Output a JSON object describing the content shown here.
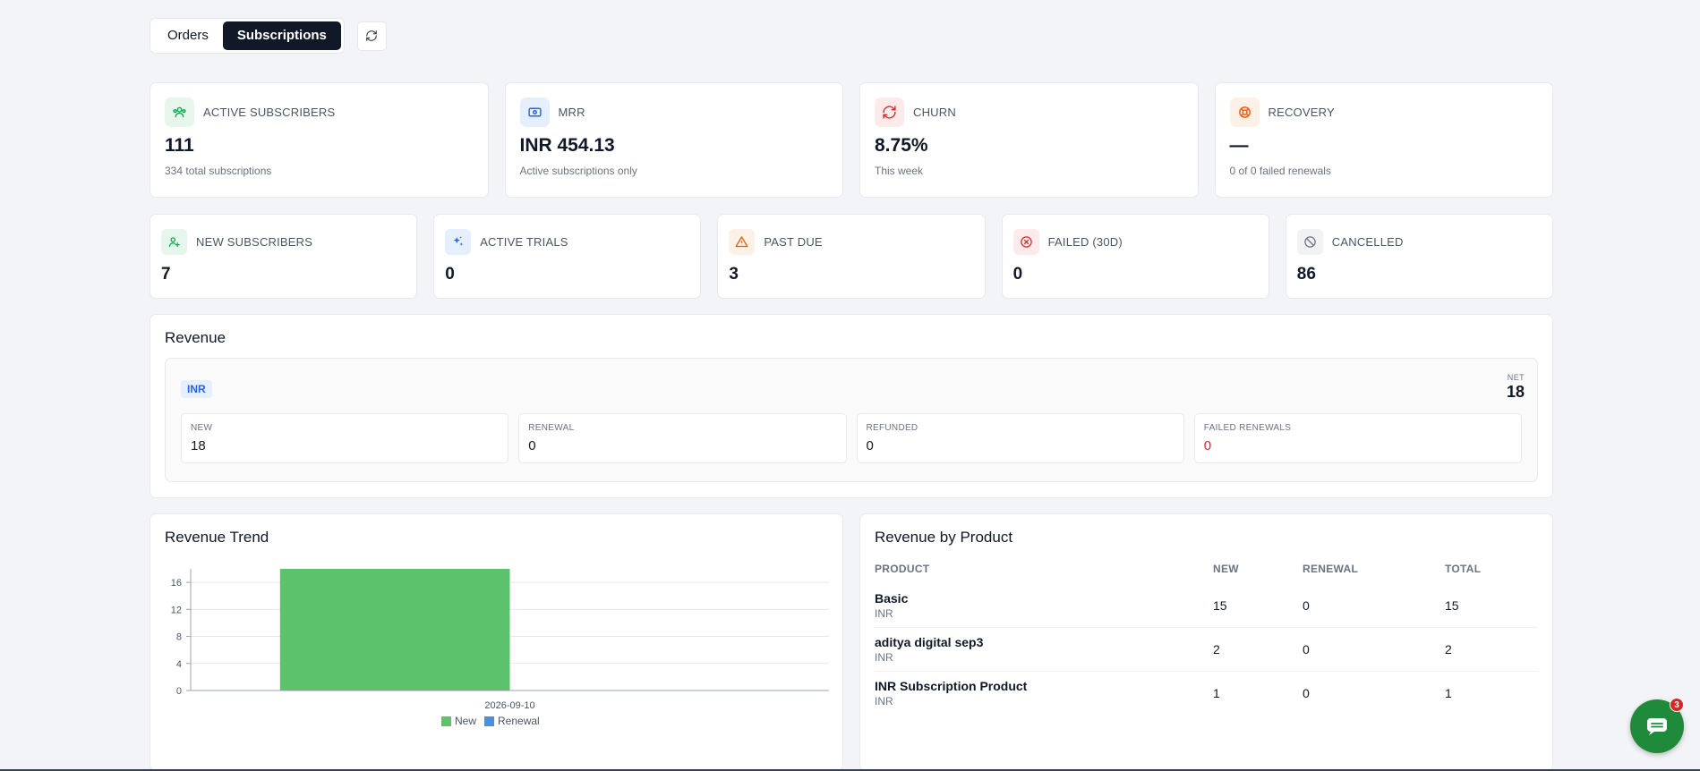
{
  "tabs": [
    {
      "label": "Orders"
    },
    {
      "label": "Subscriptions"
    }
  ],
  "active_tab": "Subscriptions",
  "stats_row1": [
    {
      "icon": "users-icon",
      "label": "ACTIVE SUBSCRIBERS",
      "value": "111",
      "sub": "334 total subscriptions",
      "color": "#16a34a",
      "bg": "#e7f6ec"
    },
    {
      "icon": "money-icon",
      "label": "MRR",
      "value": "INR 454.13",
      "sub": "Active subscriptions only",
      "color": "#2563eb",
      "bg": "#e6effd"
    },
    {
      "icon": "refresh-icon",
      "label": "CHURN",
      "value": "8.75%",
      "sub": "This week",
      "color": "#dc2626",
      "bg": "#fdeaea"
    },
    {
      "icon": "lifebuoy-icon",
      "label": "RECOVERY",
      "value": "—",
      "sub": "0 of 0 failed renewals",
      "color": "#ea580c",
      "bg": "#fdf0e6"
    }
  ],
  "stats_row2": [
    {
      "icon": "user-plus-icon",
      "label": "NEW SUBSCRIBERS",
      "value": "7",
      "color": "#16a34a",
      "bg": "#e7f6ec"
    },
    {
      "icon": "sparkles-icon",
      "label": "ACTIVE TRIALS",
      "value": "0",
      "color": "#2563eb",
      "bg": "#e6effd"
    },
    {
      "icon": "warning-icon",
      "label": "PAST DUE",
      "value": "3",
      "color": "#ea580c",
      "bg": "#fdf0e6"
    },
    {
      "icon": "x-circle-icon",
      "label": "FAILED (30D)",
      "value": "0",
      "color": "#dc2626",
      "bg": "#fdeaea"
    },
    {
      "icon": "ban-icon",
      "label": "CANCELLED",
      "value": "86",
      "color": "#6b7280",
      "bg": "#f1f2f4"
    }
  ],
  "revenue": {
    "title": "Revenue",
    "currency": "INR",
    "net_label": "NET",
    "net_value": "18",
    "boxes": [
      {
        "label": "NEW",
        "value": "18"
      },
      {
        "label": "RENEWAL",
        "value": "0"
      },
      {
        "label": "REFUNDED",
        "value": "0"
      },
      {
        "label": "FAILED RENEWALS",
        "value": "0"
      }
    ]
  },
  "trend": {
    "title": "Revenue Trend"
  },
  "chart_data": {
    "type": "bar",
    "categories": [
      "2026-09-10"
    ],
    "series": [
      {
        "name": "New",
        "values": [
          18
        ],
        "color": "#5cc26b"
      },
      {
        "name": "Renewal",
        "values": [
          0
        ],
        "color": "#4a90e2"
      }
    ],
    "yticks": [
      "0",
      "4",
      "8",
      "12",
      "16"
    ],
    "ylim": [
      0,
      18
    ],
    "grid": true,
    "legend": "bottom"
  },
  "by_product": {
    "title": "Revenue by Product",
    "columns": [
      "PRODUCT",
      "NEW",
      "RENEWAL",
      "TOTAL"
    ],
    "rows": [
      {
        "name": "Basic",
        "currency": "INR",
        "new": "15",
        "renewal": "0",
        "total": "15"
      },
      {
        "name": "aditya digital sep3",
        "currency": "INR",
        "new": "2",
        "renewal": "0",
        "total": "2"
      },
      {
        "name": "INR Subscription Product",
        "currency": "INR",
        "new": "1",
        "renewal": "0",
        "total": "1"
      }
    ]
  },
  "chat": {
    "icon": "chat-icon",
    "badge": "3"
  }
}
